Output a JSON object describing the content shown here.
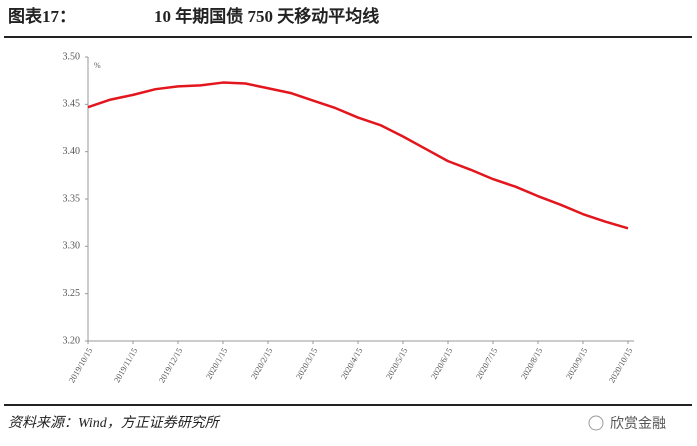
{
  "chart_data": {
    "type": "line",
    "figure_label": "图表17：",
    "title": "10 年期国债 750 天移动平均线",
    "unit": "%",
    "source": "资料来源：Wind，方正证券研究所",
    "watermark": "欣赏金融",
    "categories": [
      "2019/10/15",
      null,
      "2019/11/15",
      null,
      "2019/12/15",
      null,
      "2020/1/15",
      null,
      "2020/2/15",
      null,
      "2020/3/15",
      null,
      "2020/4/15",
      null,
      "2020/5/15",
      null,
      "2020/6/15",
      null,
      "2020/7/15",
      null,
      "2020/8/15",
      null,
      "2020/9/15",
      null,
      "2020/10/15"
    ],
    "series": [
      {
        "name": "10 年期国债 750 天移动平均线",
        "color": "#e3161e",
        "values": [
          3.447,
          3.455,
          3.46,
          3.466,
          3.469,
          3.47,
          3.473,
          3.472,
          3.467,
          3.462,
          3.454,
          3.446,
          3.436,
          3.428,
          3.416,
          3.403,
          3.39,
          3.381,
          3.371,
          3.363,
          3.353,
          3.344,
          3.334,
          3.326,
          3.319
        ]
      }
    ],
    "ylim": [
      3.2,
      3.5
    ],
    "yticks": [
      {
        "value": 3.2,
        "label": "3.20"
      },
      3.25,
      {
        "value": 3.3,
        "label": "3.30"
      },
      3.35,
      {
        "value": 3.4,
        "label": "3.40"
      },
      3.45,
      {
        "value": 3.5,
        "label": "3.50"
      }
    ],
    "grid": false
  }
}
